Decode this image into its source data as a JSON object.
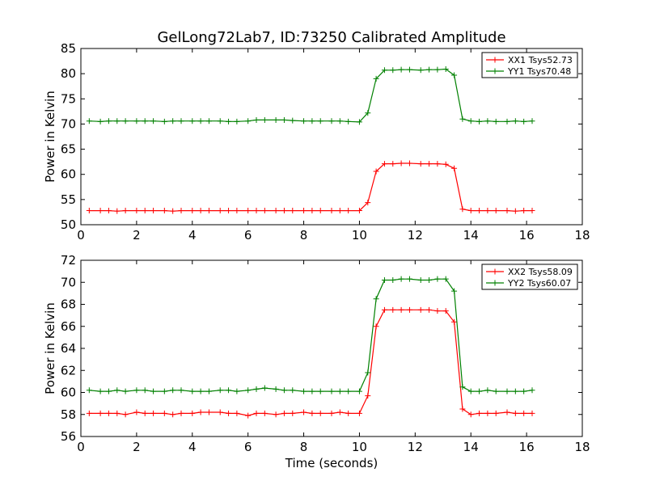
{
  "chart_data": {
    "title": "GelLong72Lab7, ID:73250 Calibrated Amplitude",
    "xlabel": "Time (seconds)",
    "plots": [
      {
        "type": "line",
        "ylabel": "Power in Kelvin",
        "xlim": [
          0,
          18
        ],
        "ylim": [
          50,
          85
        ],
        "xticks": [
          "0",
          "2",
          "4",
          "6",
          "8",
          "10",
          "12",
          "14",
          "16",
          "18"
        ],
        "yticks": [
          "50",
          "55",
          "60",
          "65",
          "70",
          "75",
          "80",
          "85"
        ],
        "legend_position": "top-right",
        "x": [
          0.3,
          0.7,
          1.0,
          1.3,
          1.6,
          2.0,
          2.3,
          2.6,
          3.0,
          3.3,
          3.6,
          4.0,
          4.3,
          4.6,
          5.0,
          5.3,
          5.6,
          6.0,
          6.3,
          6.6,
          7.0,
          7.3,
          7.6,
          8.0,
          8.3,
          8.6,
          9.0,
          9.3,
          9.6,
          10.0,
          10.3,
          10.6,
          10.9,
          11.2,
          11.5,
          11.8,
          12.2,
          12.5,
          12.8,
          13.1,
          13.4,
          13.7,
          14.0,
          14.3,
          14.6,
          14.9,
          15.3,
          15.6,
          15.9,
          16.2
        ],
        "series": [
          {
            "name": "XX1 Tsys52.73",
            "color": "#ff0000",
            "values": [
              52.8,
              52.8,
              52.8,
              52.7,
              52.8,
              52.8,
              52.8,
              52.8,
              52.8,
              52.7,
              52.8,
              52.8,
              52.8,
              52.8,
              52.8,
              52.8,
              52.8,
              52.8,
              52.8,
              52.8,
              52.8,
              52.8,
              52.8,
              52.8,
              52.8,
              52.8,
              52.8,
              52.8,
              52.8,
              52.8,
              54.4,
              60.6,
              62.1,
              62.1,
              62.2,
              62.2,
              62.1,
              62.1,
              62.1,
              62.0,
              61.2,
              53.1,
              52.8,
              52.8,
              52.8,
              52.8,
              52.8,
              52.7,
              52.8,
              52.8
            ]
          },
          {
            "name": "YY1 Tsys70.48",
            "color": "#008000",
            "values": [
              70.6,
              70.5,
              70.6,
              70.6,
              70.6,
              70.6,
              70.6,
              70.6,
              70.5,
              70.6,
              70.6,
              70.6,
              70.6,
              70.6,
              70.6,
              70.5,
              70.5,
              70.6,
              70.8,
              70.8,
              70.8,
              70.8,
              70.7,
              70.6,
              70.6,
              70.6,
              70.6,
              70.6,
              70.5,
              70.4,
              72.2,
              79.0,
              80.7,
              80.7,
              80.8,
              80.8,
              80.7,
              80.8,
              80.8,
              80.9,
              79.7,
              71.0,
              70.6,
              70.5,
              70.6,
              70.5,
              70.5,
              70.6,
              70.5,
              70.6
            ]
          }
        ]
      },
      {
        "type": "line",
        "ylabel": "Power in Kelvin",
        "xlim": [
          0,
          18
        ],
        "ylim": [
          56,
          72
        ],
        "xticks": [
          "0",
          "2",
          "4",
          "6",
          "8",
          "10",
          "12",
          "14",
          "16",
          "18"
        ],
        "yticks": [
          "56",
          "58",
          "60",
          "62",
          "64",
          "66",
          "68",
          "70",
          "72"
        ],
        "legend_position": "top-right",
        "x": [
          0.3,
          0.7,
          1.0,
          1.3,
          1.6,
          2.0,
          2.3,
          2.6,
          3.0,
          3.3,
          3.6,
          4.0,
          4.3,
          4.6,
          5.0,
          5.3,
          5.6,
          6.0,
          6.3,
          6.6,
          7.0,
          7.3,
          7.6,
          8.0,
          8.3,
          8.6,
          9.0,
          9.3,
          9.6,
          10.0,
          10.3,
          10.6,
          10.9,
          11.2,
          11.5,
          11.8,
          12.2,
          12.5,
          12.8,
          13.1,
          13.4,
          13.7,
          14.0,
          14.3,
          14.6,
          14.9,
          15.3,
          15.6,
          15.9,
          16.2
        ],
        "series": [
          {
            "name": "XX2 Tsys58.09",
            "color": "#ff0000",
            "values": [
              58.1,
              58.1,
              58.1,
              58.1,
              58.0,
              58.2,
              58.1,
              58.1,
              58.1,
              58.0,
              58.1,
              58.1,
              58.2,
              58.2,
              58.2,
              58.1,
              58.1,
              57.9,
              58.1,
              58.1,
              58.0,
              58.1,
              58.1,
              58.2,
              58.1,
              58.1,
              58.1,
              58.2,
              58.1,
              58.1,
              59.7,
              66.0,
              67.5,
              67.5,
              67.5,
              67.5,
              67.5,
              67.5,
              67.4,
              67.4,
              66.4,
              58.5,
              58.0,
              58.1,
              58.1,
              58.1,
              58.2,
              58.1,
              58.1,
              58.1
            ]
          },
          {
            "name": "YY2 Tsys60.07",
            "color": "#008000",
            "values": [
              60.2,
              60.1,
              60.1,
              60.2,
              60.1,
              60.2,
              60.2,
              60.1,
              60.1,
              60.2,
              60.2,
              60.1,
              60.1,
              60.1,
              60.2,
              60.2,
              60.1,
              60.2,
              60.3,
              60.4,
              60.3,
              60.2,
              60.2,
              60.1,
              60.1,
              60.1,
              60.1,
              60.1,
              60.1,
              60.1,
              61.8,
              68.5,
              70.2,
              70.2,
              70.3,
              70.3,
              70.2,
              70.2,
              70.3,
              70.3,
              69.2,
              60.5,
              60.1,
              60.1,
              60.2,
              60.1,
              60.1,
              60.1,
              60.1,
              60.2
            ]
          }
        ]
      }
    ]
  }
}
